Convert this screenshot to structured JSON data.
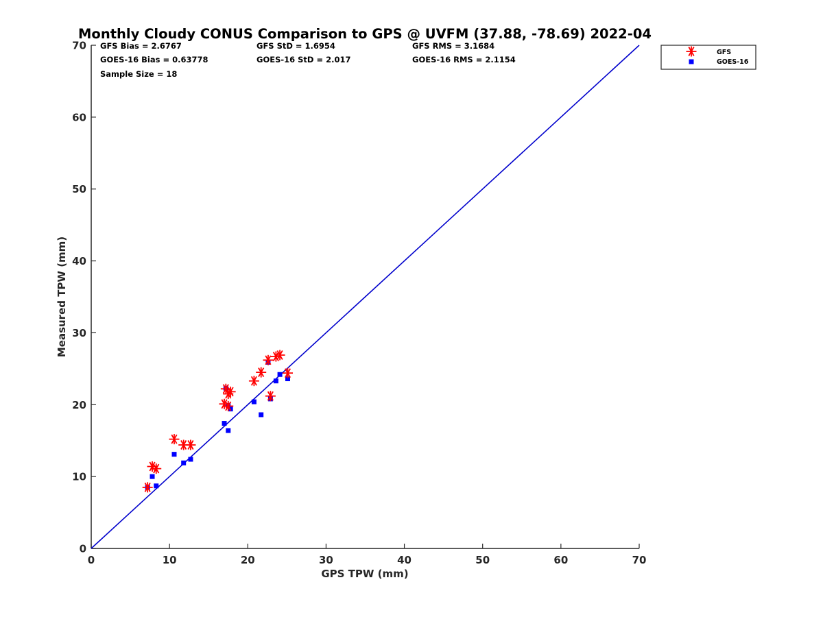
{
  "chart_data": {
    "type": "scatter",
    "title": "Monthly Cloudy CONUS Comparison to GPS @ UVFM (37.88, -78.69) 2022-04",
    "xlabel": "GPS TPW (mm)",
    "ylabel": "Measured TPW (mm)",
    "xlim": [
      0,
      70
    ],
    "ylim": [
      0,
      70
    ],
    "xticks": [
      0,
      10,
      20,
      30,
      40,
      50,
      60,
      70
    ],
    "yticks": [
      0,
      10,
      20,
      30,
      40,
      50,
      60,
      70
    ],
    "grid": false,
    "legend_position": "outside top-right",
    "stats": {
      "gfs_bias": "GFS Bias = 2.6767",
      "gfs_std": "GFS StD = 1.6954",
      "gfs_rms": "GFS RMS = 3.1684",
      "goes_bias": "GOES-16 Bias = 0.63778",
      "goes_std": "GOES-16 StD = 2.017",
      "goes_rms": "GOES-16 RMS = 2.1154",
      "sample_size": "Sample Size = 18"
    },
    "reference_line": {
      "x": [
        0,
        70
      ],
      "y": [
        0,
        70
      ],
      "color": "#0000cc"
    },
    "series": [
      {
        "name": "GFS",
        "marker": "asterisk",
        "color": "#ff0000",
        "points": [
          [
            7.2,
            8.5
          ],
          [
            7.8,
            11.4
          ],
          [
            8.3,
            11.1
          ],
          [
            10.6,
            15.2
          ],
          [
            11.8,
            14.4
          ],
          [
            12.7,
            14.4
          ],
          [
            17.0,
            20.1
          ],
          [
            17.2,
            22.2
          ],
          [
            17.5,
            19.8
          ],
          [
            17.5,
            21.5
          ],
          [
            17.8,
            21.8
          ],
          [
            20.8,
            23.3
          ],
          [
            21.7,
            24.5
          ],
          [
            22.6,
            26.2
          ],
          [
            22.9,
            21.2
          ],
          [
            23.6,
            26.7
          ],
          [
            24.1,
            26.9
          ],
          [
            25.1,
            24.4
          ]
        ]
      },
      {
        "name": "GOES-16",
        "marker": "square",
        "color": "#0000ff",
        "points": [
          [
            7.2,
            8.5
          ],
          [
            7.8,
            10.0
          ],
          [
            8.3,
            8.7
          ],
          [
            10.6,
            13.1
          ],
          [
            11.8,
            11.9
          ],
          [
            12.7,
            12.4
          ],
          [
            17.0,
            17.4
          ],
          [
            17.2,
            22.3
          ],
          [
            17.5,
            16.4
          ],
          [
            17.5,
            19.9
          ],
          [
            17.8,
            19.4
          ],
          [
            20.8,
            20.4
          ],
          [
            21.7,
            18.6
          ],
          [
            22.6,
            25.9
          ],
          [
            22.9,
            20.8
          ],
          [
            23.6,
            23.3
          ],
          [
            24.1,
            24.2
          ],
          [
            25.1,
            23.6
          ]
        ]
      }
    ]
  }
}
